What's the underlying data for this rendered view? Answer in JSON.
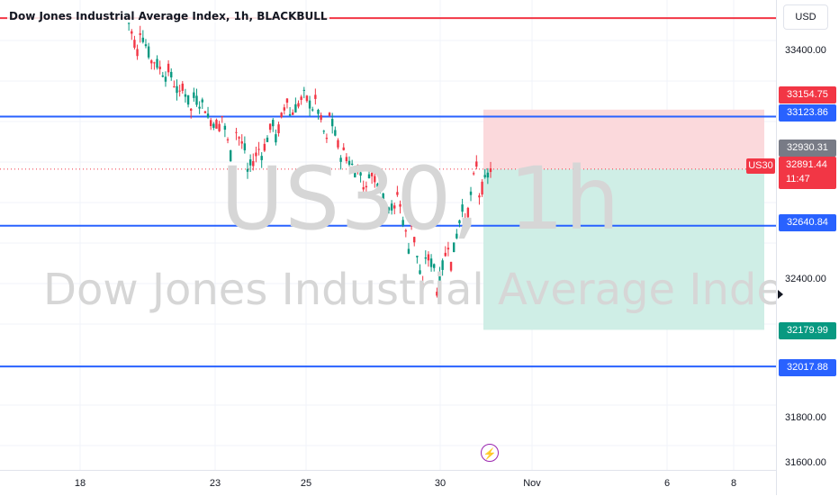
{
  "header": {
    "title": "Dow Jones Industrial Average Index, 1h, BLACKBULL"
  },
  "watermark": {
    "symbol": "US30, 1h",
    "name": "Dow Jones Industrial Average Index"
  },
  "currency": "USD",
  "price_ticks": [
    "33400.00",
    "32400.00",
    "31800.00",
    "31600.00"
  ],
  "price_labels": {
    "stop": "33154.75",
    "h_line_1": "33123.86",
    "prior_high": "32930.31",
    "current": "32891.44",
    "countdown": "11:47",
    "h_line_2": "32640.84",
    "target": "32179.99",
    "h_line_3": "32017.88"
  },
  "symbol_tag": "US30",
  "date_ticks": [
    "18",
    "23",
    "25",
    "30",
    "Nov",
    "6",
    "8"
  ],
  "colors": {
    "blue_line": "#2962ff",
    "red_line": "#f23645",
    "up": "#089981",
    "down": "#f23645",
    "risk_zone": "#fbd9dc",
    "reward_zone": "#cfeee6"
  },
  "chart_data": {
    "type": "candlestick",
    "symbol": "US30",
    "interval": "1h",
    "horizontal_levels": [
      33123.86,
      32640.84,
      32017.88
    ],
    "top_red_level": 33560,
    "position": {
      "side": "short",
      "entry": 32891.44,
      "stop": 33154.75,
      "target": 32179.99
    },
    "ohlc_path": [
      [
        33580,
        33520
      ],
      [
        33520,
        33380
      ],
      [
        33380,
        33350
      ],
      [
        33350,
        33300
      ],
      [
        33300,
        33210
      ],
      [
        33210,
        33120
      ],
      [
        33120,
        33160
      ],
      [
        33160,
        33080
      ],
      [
        33080,
        32880
      ],
      [
        32880,
        32950
      ],
      [
        32950,
        33000
      ],
      [
        33000,
        33120
      ],
      [
        33120,
        33230
      ],
      [
        33230,
        33200
      ],
      [
        33200,
        33150
      ],
      [
        33150,
        32980
      ],
      [
        32980,
        32930
      ],
      [
        32930,
        32880
      ],
      [
        32880,
        32760
      ],
      [
        32760,
        32820
      ],
      [
        32820,
        32700
      ],
      [
        32700,
        32520
      ],
      [
        32520,
        32350
      ],
      [
        32350,
        32450
      ],
      [
        32450,
        32600
      ],
      [
        32600,
        32760
      ],
      [
        32760,
        32930
      ],
      [
        32930,
        32891
      ]
    ],
    "ylim": [
      31560,
      33640
    ]
  }
}
